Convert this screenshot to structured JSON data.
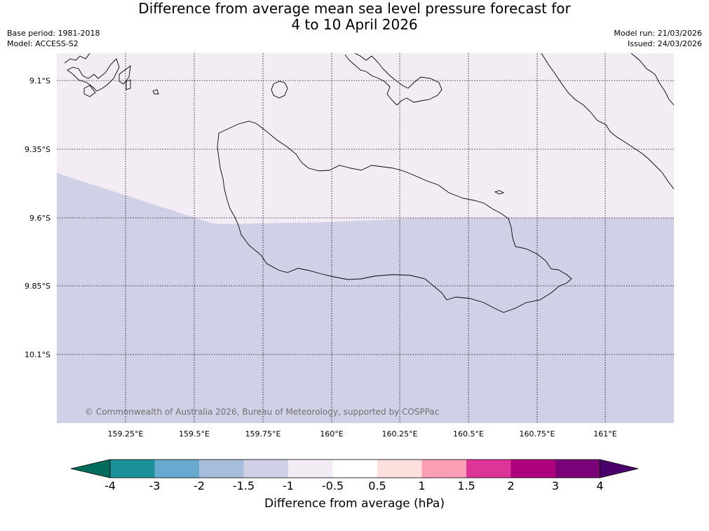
{
  "title": {
    "line1": "Difference from average mean sea level pressure forecast for",
    "line2": "4 to 10 April 2026"
  },
  "meta": {
    "base_period": "Base period: 1981-2018",
    "model": "Model: ACCESS-S2",
    "model_run": "Model run: 21/03/2026",
    "issued": "Issued: 24/03/2026"
  },
  "map": {
    "lat_labels": [
      "9.1°S",
      "9.35°S",
      "9.6°S",
      "9.85°S",
      "10.1°S"
    ],
    "lon_labels": [
      "159.25°E",
      "159.5°E",
      "159.75°E",
      "160°E",
      "160.25°E",
      "160.5°E",
      "160.75°E",
      "161°E"
    ],
    "copyright": "© Commonwealth of Australia 2026, Bureau of Meteorology, supported by COSPPac",
    "fill_colors": {
      "upper": "#f3ecf5",
      "lower": "#d0d1e6",
      "coast": "#000000"
    }
  },
  "colorbar": {
    "title": "Difference from average (hPa)",
    "tick_labels": [
      "-4",
      "-3",
      "-2",
      "-1.5",
      "-1",
      "-0.5",
      "0.5",
      "1",
      "1.5",
      "2",
      "3",
      "4"
    ],
    "colors": [
      "#016c59",
      "#1c9099",
      "#67a9cf",
      "#a6bddb",
      "#d0d1e6",
      "#f3ecf5",
      "#ffffff",
      "#fde0dd",
      "#fa9fb5",
      "#dd3497",
      "#ae017e",
      "#7a0177",
      "#49006a"
    ]
  }
}
